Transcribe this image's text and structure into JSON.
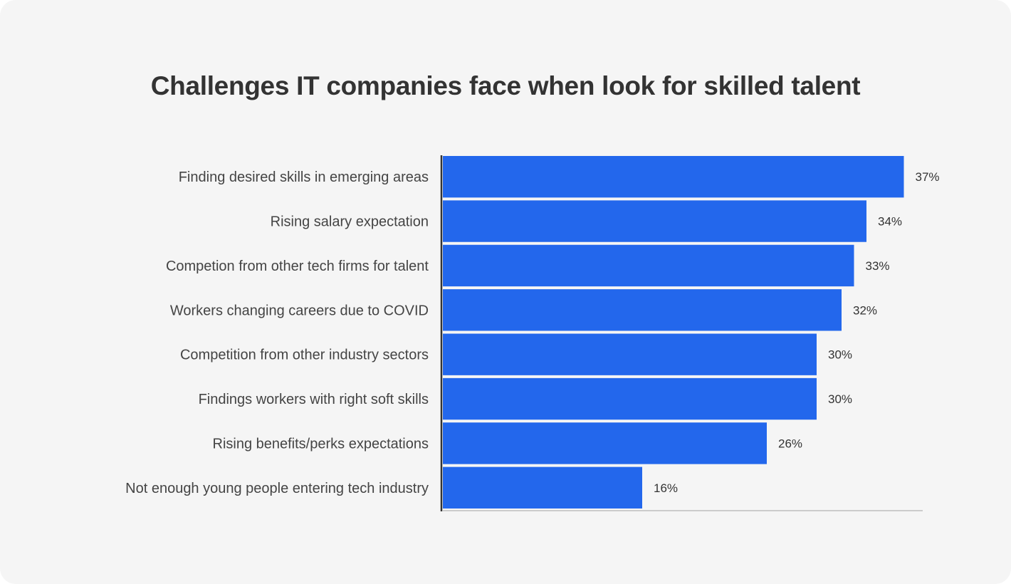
{
  "chart_data": {
    "type": "bar",
    "orientation": "horizontal",
    "title": "Challenges IT companies face when look for skilled talent",
    "categories": [
      "Finding desired skills in emerging areas",
      "Rising salary expectation",
      "Competion from other tech firms for talent",
      "Workers changing careers due to COVID",
      "Competition from other industry sectors",
      "Findings workers with right soft skills",
      "Rising benefits/perks expectations",
      "Not enough young people entering tech industry"
    ],
    "values": [
      37,
      34,
      33,
      32,
      30,
      30,
      26,
      16
    ],
    "value_labels": [
      "37%",
      "34%",
      "33%",
      "32%",
      "30%",
      "30%",
      "26%",
      "16%"
    ],
    "unit": "%",
    "xlim": [
      0,
      38.6
    ],
    "grid": false,
    "legend": "none",
    "colors": {
      "bar": "#2367ec",
      "text": "#333333",
      "axis": "#333333",
      "baseline": "#cccccc",
      "background": "#f5f5f5"
    }
  }
}
